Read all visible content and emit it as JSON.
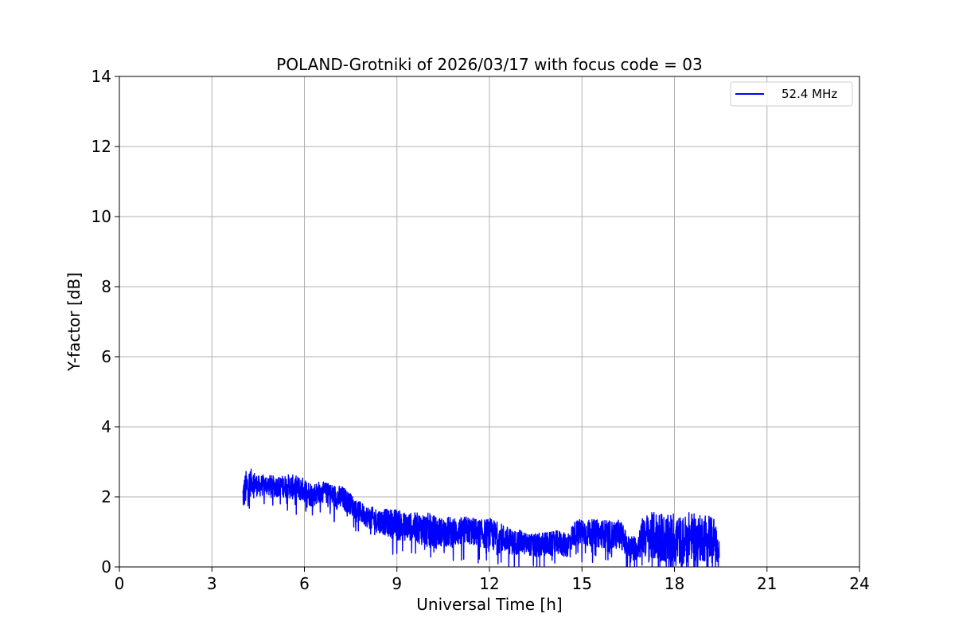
{
  "chart_data": {
    "type": "line",
    "title": "POLAND-Grotniki of 2026/03/17 with focus code = 03",
    "xlabel": "Universal Time [h]",
    "ylabel": "Y-factor [dB]",
    "xlim": [
      0,
      24
    ],
    "ylim": [
      0,
      14
    ],
    "xticks": [
      0,
      3,
      6,
      9,
      12,
      15,
      18,
      21,
      24
    ],
    "yticks": [
      0,
      2,
      4,
      6,
      8,
      10,
      12,
      14
    ],
    "grid": true,
    "legend": {
      "location": "upper-right"
    },
    "series": [
      {
        "name": "52.4 MHz",
        "color": "#0000ff",
        "x": [
          4.0,
          4.1,
          4.3,
          4.5,
          4.75,
          5.0,
          5.25,
          5.5,
          5.75,
          6.0,
          6.25,
          6.5,
          6.75,
          7.0,
          7.25,
          7.5,
          7.75,
          8.0,
          8.25,
          8.5,
          8.75,
          9.0,
          9.25,
          9.5,
          9.75,
          10.0,
          10.25,
          10.5,
          10.75,
          11.0,
          11.25,
          11.5,
          11.75,
          12.0,
          12.25,
          12.5,
          12.75,
          13.0,
          13.25,
          13.5,
          13.75,
          14.0,
          14.25,
          14.5,
          14.75,
          15.0,
          15.25,
          15.5,
          15.75,
          16.0,
          16.25,
          16.5,
          16.75,
          17.0,
          17.25,
          17.5,
          17.75,
          18.0,
          18.25,
          18.5,
          18.75,
          19.0,
          19.25,
          19.45
        ],
        "y": [
          2.0,
          2.25,
          2.45,
          2.3,
          2.35,
          2.3,
          2.3,
          2.3,
          2.25,
          2.2,
          2.05,
          2.15,
          2.1,
          2.0,
          1.95,
          1.8,
          1.6,
          1.45,
          1.35,
          1.3,
          1.25,
          1.2,
          1.15,
          1.15,
          1.1,
          1.05,
          1.0,
          1.0,
          1.0,
          1.0,
          1.05,
          1.0,
          0.95,
          0.95,
          0.85,
          0.8,
          0.7,
          0.7,
          0.65,
          0.6,
          0.65,
          0.65,
          0.7,
          0.6,
          0.95,
          1.0,
          0.95,
          0.95,
          0.95,
          0.9,
          0.95,
          0.55,
          0.55,
          0.9,
          0.85,
          0.9,
          0.75,
          0.85,
          0.7,
          0.9,
          0.8,
          0.85,
          0.9,
          0.4
        ],
        "spread": [
          0.4,
          0.5,
          0.35,
          0.3,
          0.3,
          0.3,
          0.3,
          0.35,
          0.35,
          0.35,
          0.35,
          0.3,
          0.3,
          0.35,
          0.35,
          0.3,
          0.3,
          0.3,
          0.35,
          0.35,
          0.4,
          0.45,
          0.4,
          0.4,
          0.45,
          0.5,
          0.45,
          0.4,
          0.45,
          0.4,
          0.4,
          0.4,
          0.4,
          0.45,
          0.45,
          0.4,
          0.35,
          0.35,
          0.3,
          0.35,
          0.35,
          0.35,
          0.35,
          0.35,
          0.35,
          0.4,
          0.4,
          0.4,
          0.4,
          0.4,
          0.4,
          0.35,
          0.35,
          0.6,
          0.7,
          0.7,
          0.7,
          0.75,
          0.7,
          0.7,
          0.65,
          0.7,
          0.65,
          0.3
        ]
      }
    ]
  }
}
